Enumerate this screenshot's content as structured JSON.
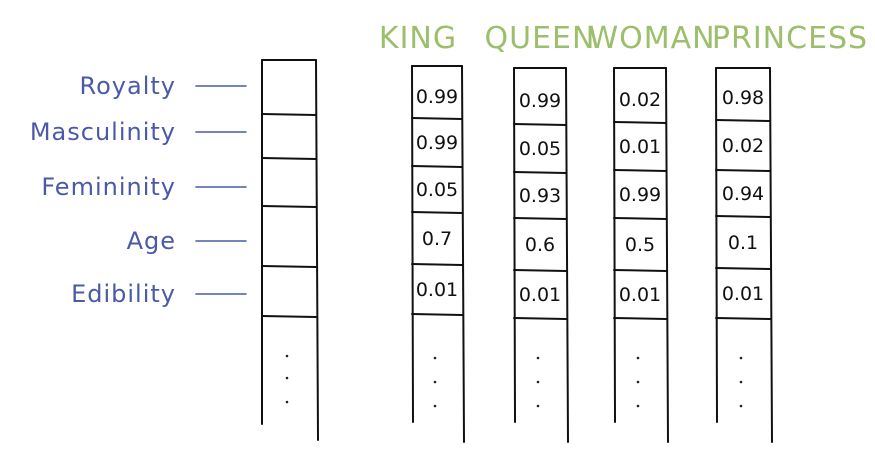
{
  "features": [
    "Royalty",
    "Masculinity",
    "Femininity",
    "Age",
    "Edibility"
  ],
  "words": [
    {
      "label": "KING",
      "values": [
        "0.99",
        "0.99",
        "0.05",
        "0.7",
        "0.01"
      ]
    },
    {
      "label": "QUEEN",
      "values": [
        "0.99",
        "0.05",
        "0.93",
        "0.6",
        "0.01"
      ]
    },
    {
      "label": "WOMAN",
      "values": [
        "0.02",
        "0.01",
        "0.99",
        "0.5",
        "0.01"
      ]
    },
    {
      "label": "PRINCESS",
      "values": [
        "0.98",
        "0.02",
        "0.94",
        "0.1",
        "0.01"
      ]
    }
  ],
  "colors": {
    "feature_labels": "#4a5aa8",
    "word_labels": "#9bbf6a",
    "lines": "#111111"
  }
}
